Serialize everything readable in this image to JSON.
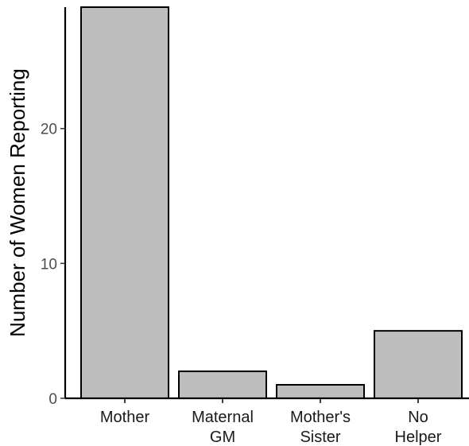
{
  "chart_data": {
    "type": "bar",
    "categories": [
      [
        "Mother"
      ],
      [
        "Maternal",
        "GM"
      ],
      [
        "Mother's",
        "Sister"
      ],
      [
        "No",
        "Helper"
      ]
    ],
    "values": [
      29,
      2,
      1,
      5
    ],
    "ylabel": "Number of Women Reporting",
    "yticks": [
      0,
      10,
      20
    ],
    "ylim": [
      0,
      29
    ],
    "grid": false,
    "bar_fill": "#bebebe",
    "bar_stroke": "#000000"
  }
}
